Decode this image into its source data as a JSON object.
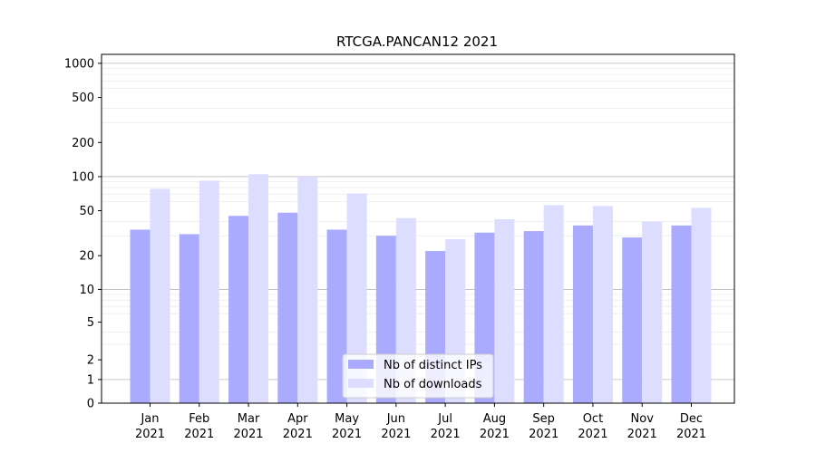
{
  "chart_data": {
    "type": "bar",
    "title": "RTCGA.PANCAN12 2021",
    "xlabel": "",
    "ylabel": "",
    "y_scale": "symlog",
    "ylim": [
      0,
      1200
    ],
    "y_ticks": [
      0,
      1,
      2,
      5,
      10,
      20,
      50,
      100,
      200,
      500,
      1000
    ],
    "y_tick_labels": [
      "0",
      "1",
      "2",
      "5",
      "10",
      "20",
      "50",
      "100",
      "200",
      "500",
      "1000"
    ],
    "categories": [
      {
        "month": "Jan",
        "year": "2021"
      },
      {
        "month": "Feb",
        "year": "2021"
      },
      {
        "month": "Mar",
        "year": "2021"
      },
      {
        "month": "Apr",
        "year": "2021"
      },
      {
        "month": "May",
        "year": "2021"
      },
      {
        "month": "Jun",
        "year": "2021"
      },
      {
        "month": "Jul",
        "year": "2021"
      },
      {
        "month": "Aug",
        "year": "2021"
      },
      {
        "month": "Sep",
        "year": "2021"
      },
      {
        "month": "Oct",
        "year": "2021"
      },
      {
        "month": "Nov",
        "year": "2021"
      },
      {
        "month": "Dec",
        "year": "2021"
      }
    ],
    "series": [
      {
        "name": "Nb of distinct IPs",
        "color": "#aaaaff",
        "values": [
          34,
          31,
          45,
          48,
          34,
          30,
          22,
          32,
          33,
          37,
          29,
          37
        ]
      },
      {
        "name": "Nb of downloads",
        "color": "#ddddff",
        "values": [
          78,
          92,
          105,
          100,
          71,
          43,
          28,
          42,
          56,
          55,
          40,
          53
        ]
      }
    ],
    "grid": true,
    "legend_position": "bottom-center"
  }
}
